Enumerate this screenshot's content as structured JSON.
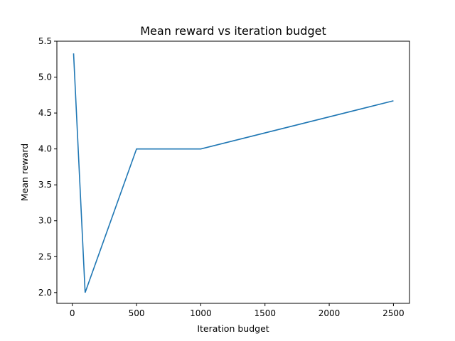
{
  "chart_data": {
    "type": "line",
    "title": "Mean reward vs iteration budget",
    "xlabel": "Iteration budget",
    "ylabel": "Mean reward",
    "xlim": [
      -120,
      2625
    ],
    "ylim": [
      1.85,
      5.5
    ],
    "xticks": [
      0,
      500,
      1000,
      1500,
      2000,
      2500
    ],
    "xtick_labels": [
      "0",
      "500",
      "1000",
      "1500",
      "2000",
      "2500"
    ],
    "yticks": [
      2.0,
      2.5,
      3.0,
      3.5,
      4.0,
      4.5,
      5.0,
      5.5
    ],
    "ytick_labels": [
      "2.0",
      "2.5",
      "3.0",
      "3.5",
      "4.0",
      "4.5",
      "5.0",
      "5.5"
    ],
    "grid": false,
    "series": [
      {
        "x": [
          10,
          100,
          500,
          1000,
          2500
        ],
        "y": [
          5.33,
          2.0,
          4.0,
          4.0,
          4.67
        ],
        "color": "#1f77b4"
      }
    ]
  }
}
